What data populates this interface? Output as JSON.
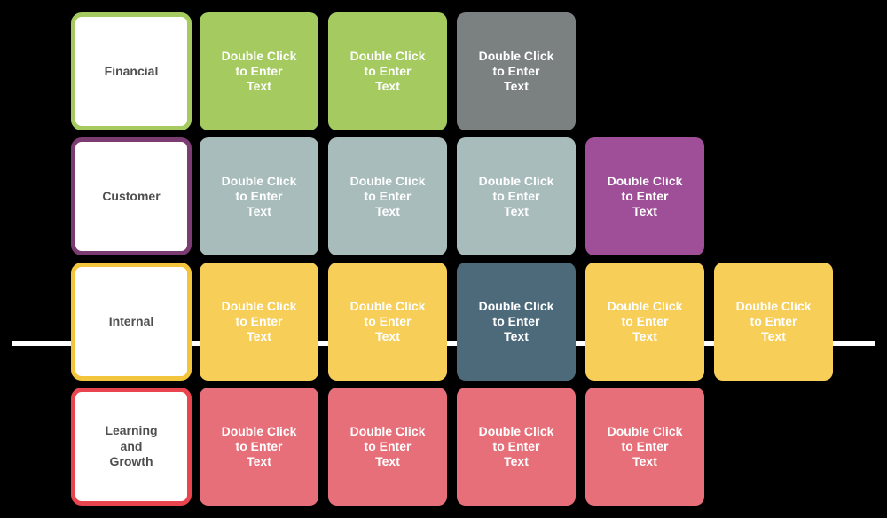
{
  "theme": {
    "background": "#000000",
    "card_text_color": "#ffffff",
    "label_text_color": "#4f4f4f",
    "label_fill": "#ffffff",
    "connector_color": "#ffffff"
  },
  "palette": {
    "green": "#a4ca60",
    "gray": "#7b8081",
    "blue_gray": "#a9bcbc",
    "purple": "#9f4e98",
    "purple_border": "#7b3c72",
    "yellow": "#f6ce58",
    "yellow_border": "#f2c53d",
    "dark_slate": "#4d6a7b",
    "red": "#e76f79",
    "red_border": "#e8454f"
  },
  "rows": [
    {
      "name": "financial",
      "label": {
        "text": "Financial",
        "lines": [
          "Financial"
        ],
        "border_color": "#a4ca60"
      },
      "cards": [
        {
          "text": "Double Click to Enter Text",
          "lines": [
            "Double Click",
            "to Enter",
            "Text"
          ],
          "color": "#a4ca60"
        },
        {
          "text": "Double Click to Enter Text",
          "lines": [
            "Double Click",
            "to Enter",
            "Text"
          ],
          "color": "#a4ca60"
        },
        {
          "text": "Double Click to Enter Text",
          "lines": [
            "Double Click",
            "to Enter",
            "Text"
          ],
          "color": "#7b8081"
        }
      ]
    },
    {
      "name": "customer",
      "label": {
        "text": "Customer",
        "lines": [
          "Customer"
        ],
        "border_color": "#7b3c72"
      },
      "cards": [
        {
          "text": "Double Click to Enter Text",
          "lines": [
            "Double Click",
            "to Enter",
            "Text"
          ],
          "color": "#a9bcbc"
        },
        {
          "text": "Double Click to Enter Text",
          "lines": [
            "Double Click",
            "to Enter",
            "Text"
          ],
          "color": "#a9bcbc"
        },
        {
          "text": "Double Click to Enter Text",
          "lines": [
            "Double Click",
            "to Enter",
            "Text"
          ],
          "color": "#a9bcbc"
        },
        {
          "text": "Double Click to Enter Text",
          "lines": [
            "Double Click",
            "to Enter",
            "Text"
          ],
          "color": "#9f4e98"
        }
      ]
    },
    {
      "name": "internal",
      "label": {
        "text": "Internal",
        "lines": [
          "Internal"
        ],
        "border_color": "#f2c53d"
      },
      "cards": [
        {
          "text": "Double Click to Enter Text",
          "lines": [
            "Double Click",
            "to Enter",
            "Text"
          ],
          "color": "#f6ce58"
        },
        {
          "text": "Double Click to Enter Text",
          "lines": [
            "Double Click",
            "to Enter",
            "Text"
          ],
          "color": "#f6ce58"
        },
        {
          "text": "Double Click to Enter Text",
          "lines": [
            "Double Click",
            "to Enter",
            "Text"
          ],
          "color": "#4d6a7b"
        },
        {
          "text": "Double Click to Enter Text",
          "lines": [
            "Double Click",
            "to Enter",
            "Text"
          ],
          "color": "#f6ce58"
        },
        {
          "text": "Double Click to Enter Text",
          "lines": [
            "Double Click",
            "to Enter",
            "Text"
          ],
          "color": "#f6ce58"
        }
      ]
    },
    {
      "name": "learning-and-growth",
      "label": {
        "text": "Learning and Growth",
        "lines": [
          "Learning",
          "and",
          "Growth"
        ],
        "border_color": "#e8454f"
      },
      "cards": [
        {
          "text": "Double Click to Enter Text",
          "lines": [
            "Double Click",
            "to Enter",
            "Text"
          ],
          "color": "#e76f79"
        },
        {
          "text": "Double Click to Enter Text",
          "lines": [
            "Double Click",
            "to Enter",
            "Text"
          ],
          "color": "#e76f79"
        },
        {
          "text": "Double Click to Enter Text",
          "lines": [
            "Double Click",
            "to Enter",
            "Text"
          ],
          "color": "#e76f79"
        },
        {
          "text": "Double Click to Enter Text",
          "lines": [
            "Double Click",
            "to Enter",
            "Text"
          ],
          "color": "#e76f79"
        }
      ]
    }
  ]
}
